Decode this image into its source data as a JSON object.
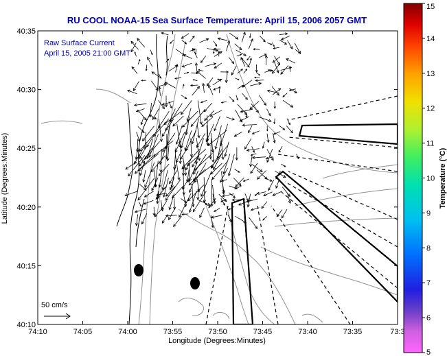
{
  "title": "RU COOL  NOAA-15  Sea Surface Temperature:  April 15, 2006 2057 GMT",
  "annotation_line1": "Raw Surface Current",
  "annotation_line2": "April 15, 2005 21:00 GMT",
  "scale_label": "50 cm/s",
  "xlabel": "Longitude (Degrees:Minutes)",
  "ylabel": "Latitude (Degrees:Minutes)",
  "colorbar_label": "Temperature (°C)",
  "colors": {
    "title": "#0000b0",
    "land_contour": "#000000",
    "bathymetry": "#909090",
    "vectors": "#000000"
  },
  "chart_data": {
    "type": "map",
    "title": "RU COOL  NOAA-15  Sea Surface Temperature:  April 15, 2006 2057 GMT",
    "xlabel": "Longitude (Degrees:Minutes)",
    "ylabel": "Latitude (Degrees:Minutes)",
    "x_ticks": [
      "74:10",
      "74:05",
      "74:00",
      "73:55",
      "73:50",
      "73:45",
      "73:40",
      "73:35",
      "73:3"
    ],
    "y_ticks": [
      "40:35",
      "40:30",
      "40:25",
      "40:20",
      "40:15",
      "40:10"
    ],
    "colorbar": {
      "label": "Temperature (°C)",
      "range": [
        5,
        15
      ],
      "ticks": [
        "15",
        "14",
        "13",
        "12",
        "11",
        "10",
        "9",
        "8",
        "7",
        "6",
        "5"
      ]
    },
    "markers": [
      {
        "name": "dot",
        "lon_min": 58.8,
        "lat_min": 14.7
      },
      {
        "name": "dot",
        "lon_min": 52.3,
        "lat_min": 13.5
      }
    ],
    "scale_vector": {
      "label": "50 cm/s",
      "value": 50
    }
  }
}
